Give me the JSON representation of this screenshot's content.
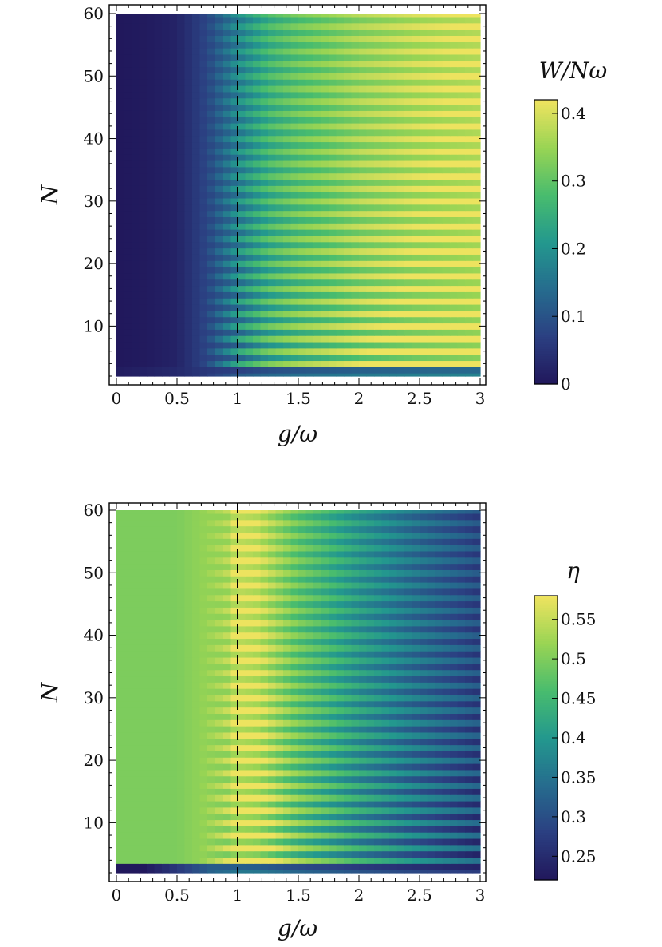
{
  "chart_data": [
    {
      "type": "heatmap",
      "xlabel": "g/ω",
      "ylabel": "N",
      "xlim": [
        0,
        3
      ],
      "ylim": [
        2,
        60
      ],
      "x_ticks": [
        "0",
        "0.5",
        "1",
        "1.5",
        "2",
        "2.5",
        "3"
      ],
      "y_ticks": [
        "10",
        "20",
        "30",
        "40",
        "50",
        "60"
      ],
      "critical_line_x": 1,
      "colorbar": {
        "title": "W/Nω",
        "range": [
          0,
          0.42
        ],
        "ticks": [
          "0",
          "0.1",
          "0.2",
          "0.3",
          "0.4"
        ],
        "tick_values": [
          0,
          0.1,
          0.2,
          0.3,
          0.4
        ]
      },
      "values": {
        "g_knots": [
          0,
          0.25,
          0.5,
          0.75,
          1.0,
          1.25,
          1.5,
          2.0,
          2.5,
          3.0
        ],
        "base_knots": [
          0.0,
          0.005,
          0.02,
          0.08,
          0.18,
          0.26,
          0.3,
          0.35,
          0.38,
          0.4
        ],
        "stripe_amplitude": 0.07,
        "low_N_band": {
          "N": 3,
          "value": 0.05
        }
      }
    },
    {
      "type": "heatmap",
      "xlabel": "g/ω",
      "ylabel": "N",
      "xlim": [
        0,
        3
      ],
      "ylim": [
        2,
        60
      ],
      "x_ticks": [
        "0",
        "0.5",
        "1",
        "1.5",
        "2",
        "2.5",
        "3"
      ],
      "y_ticks": [
        "10",
        "20",
        "30",
        "40",
        "50",
        "60"
      ],
      "critical_line_x": 1,
      "colorbar": {
        "title": "η",
        "range": [
          0.22,
          0.58
        ],
        "ticks": [
          "0.25",
          "0.3",
          "0.35",
          "0.4",
          "0.45",
          "0.5",
          "0.55"
        ],
        "tick_values": [
          0.25,
          0.3,
          0.35,
          0.4,
          0.45,
          0.5,
          0.55
        ]
      },
      "values": {
        "g_knots": [
          0,
          0.5,
          0.9,
          1.0,
          1.15,
          1.5,
          2.0,
          2.5,
          3.0
        ],
        "base_knots": [
          0.5,
          0.5,
          0.53,
          0.57,
          0.56,
          0.48,
          0.4,
          0.34,
          0.29
        ],
        "stripe_amplitude": 0.06,
        "low_N_band": {
          "N": 3,
          "value": 0.24
        }
      }
    }
  ],
  "colors": {
    "viridis_dark": "#21185c",
    "viridis_mid": "#23988e",
    "viridis_light": "#ede35f",
    "frame": "#000000",
    "dashed_line": "#000000"
  }
}
